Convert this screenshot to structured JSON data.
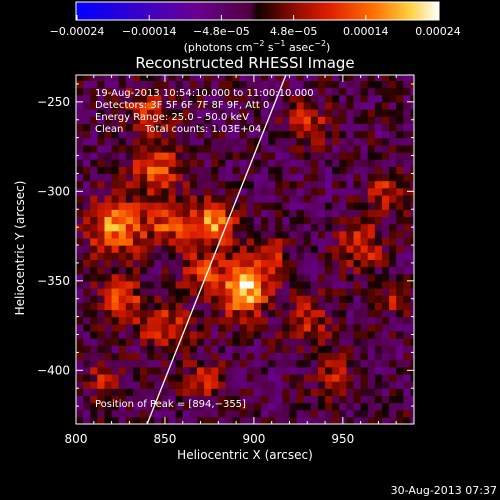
{
  "chart_data": {
    "type": "heatmap",
    "title": "Reconstructed RHESSI Image",
    "xlabel": "Heliocentric X (arcsec)",
    "ylabel": "Heliocentric Y (arcsec)",
    "xlim": [
      800,
      990
    ],
    "ylim": [
      -430,
      -235
    ],
    "x_ticks": [
      800,
      850,
      900,
      950
    ],
    "y_ticks": [
      -250,
      -300,
      -350,
      -400
    ],
    "x_tick_labels": [
      "800",
      "850",
      "900",
      "950"
    ],
    "y_tick_labels": [
      "−250",
      "−300",
      "−350",
      "−400"
    ],
    "colorbar": {
      "range": [
        -0.00024,
        0.00024
      ],
      "tick_labels": [
        "−0.00024",
        "−0.00014",
        "−4.8e−05",
        "4.8e−05",
        "0.00014",
        "0.00024"
      ],
      "unit_parts": [
        "(photons cm",
        "−2",
        " s",
        "−1",
        " asec",
        "−2",
        ")"
      ]
    },
    "annotations": {
      "time_range": "19-Aug-2013 10:54:10.000 to 11:00:10.000",
      "detectors": "Detectors: 3F 5F 6F 7F 8F 9F, Att 0",
      "energy_range": "Energy Range: 25.0 – 50.0 keV",
      "method": "Clean",
      "total_counts": "Total counts: 1.03E+04",
      "peak": "Position of Peak = [894,−355]"
    },
    "peak": [
      894,
      -355
    ],
    "limb_line": [
      [
        840,
        -430
      ],
      [
        918,
        -235
      ]
    ],
    "sources": [
      {
        "x": 894,
        "y": -355,
        "amp": 1.0,
        "sigma": 10
      },
      {
        "x": 878,
        "y": -318,
        "amp": 0.78,
        "sigma": 9
      },
      {
        "x": 822,
        "y": -320,
        "amp": 0.8,
        "sigma": 11
      },
      {
        "x": 845,
        "y": -287,
        "amp": 0.6,
        "sigma": 10
      },
      {
        "x": 852,
        "y": -318,
        "amp": 0.55,
        "sigma": 9
      },
      {
        "x": 930,
        "y": -262,
        "amp": 0.5,
        "sigma": 8
      },
      {
        "x": 960,
        "y": -330,
        "amp": 0.55,
        "sigma": 9
      },
      {
        "x": 975,
        "y": -300,
        "amp": 0.45,
        "sigma": 8
      },
      {
        "x": 825,
        "y": -360,
        "amp": 0.55,
        "sigma": 9
      },
      {
        "x": 850,
        "y": -375,
        "amp": 0.5,
        "sigma": 10
      },
      {
        "x": 872,
        "y": -405,
        "amp": 0.45,
        "sigma": 8
      },
      {
        "x": 930,
        "y": -372,
        "amp": 0.45,
        "sigma": 9
      },
      {
        "x": 945,
        "y": -402,
        "amp": 0.35,
        "sigma": 8
      },
      {
        "x": 815,
        "y": -405,
        "amp": 0.35,
        "sigma": 7
      },
      {
        "x": 840,
        "y": -255,
        "amp": 0.5,
        "sigma": 9
      },
      {
        "x": 870,
        "y": -345,
        "amp": 0.5,
        "sigma": 8
      },
      {
        "x": 908,
        "y": -335,
        "amp": 0.45,
        "sigma": 8
      },
      {
        "x": 980,
        "y": -360,
        "amp": 0.35,
        "sigma": 7
      }
    ],
    "grid": false
  },
  "footer": {
    "timestamp": "30-Aug-2013 07:37"
  }
}
